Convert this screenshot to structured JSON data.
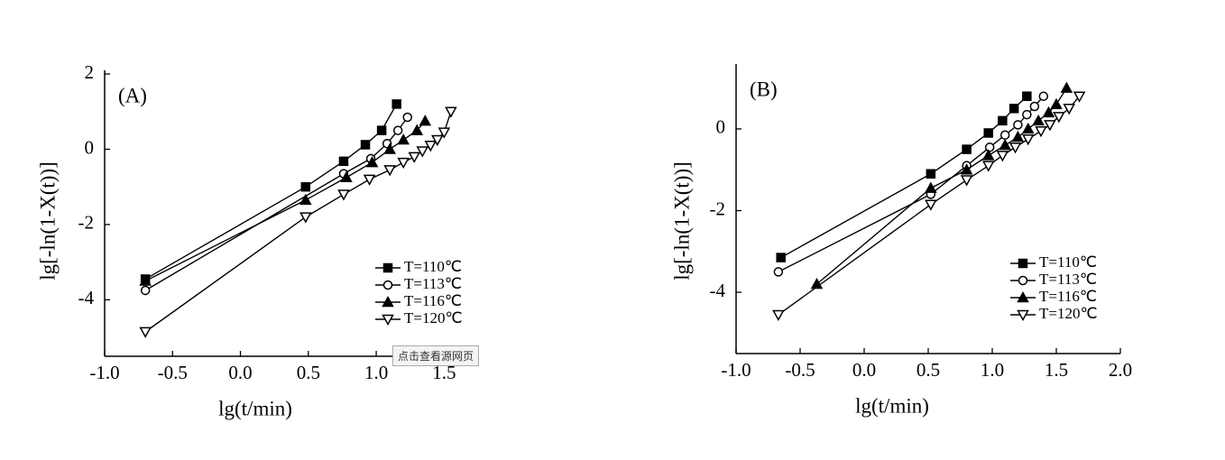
{
  "chart_data": [
    {
      "type": "line",
      "label": "(A)",
      "x_label": "lg(t/min)",
      "y_label": "lg[-ln(1-X(t))]",
      "xlim": [
        -1.0,
        1.75
      ],
      "ylim": [
        -5.5,
        2
      ],
      "xticks": [
        {
          "value": -1.0,
          "label": "-1.0"
        },
        {
          "value": -0.5,
          "label": "-0.5"
        },
        {
          "value": 0.0,
          "label": "0.0"
        },
        {
          "value": 0.5,
          "label": "0.5"
        },
        {
          "value": 1.0,
          "label": "1.0"
        },
        {
          "value": 1.5,
          "label": "1.5"
        }
      ],
      "yticks": [
        2,
        0,
        -2,
        -4
      ],
      "legend": "lower right",
      "series": [
        {
          "name": "T=110℃",
          "color": "#000000",
          "marker": "square",
          "filled": true,
          "x": [
            -0.7,
            0.48,
            0.76,
            0.92,
            1.04,
            1.15
          ],
          "values": [
            -3.45,
            -1.0,
            -0.32,
            0.12,
            0.5,
            1.2
          ]
        },
        {
          "name": "T=113℃",
          "color": "#000000",
          "marker": "circle",
          "filled": false,
          "x": [
            -0.7,
            0.76,
            0.96,
            1.08,
            1.16,
            1.23
          ],
          "values": [
            -3.75,
            -0.65,
            -0.25,
            0.15,
            0.5,
            0.85
          ]
        },
        {
          "name": "T=116℃",
          "color": "#000000",
          "marker": "triangle",
          "filled": true,
          "x": [
            -0.7,
            0.48,
            0.78,
            0.97,
            1.1,
            1.2,
            1.3,
            1.36
          ],
          "values": [
            -3.5,
            -1.35,
            -0.75,
            -0.35,
            0.0,
            0.25,
            0.5,
            0.75
          ]
        },
        {
          "name": "T=120℃",
          "color": "#000000",
          "marker": "triangle-down",
          "filled": false,
          "x": [
            -0.7,
            0.48,
            0.76,
            0.95,
            1.1,
            1.2,
            1.28,
            1.34,
            1.4,
            1.45,
            1.5,
            1.55
          ],
          "values": [
            -4.85,
            -1.8,
            -1.2,
            -0.8,
            -0.55,
            -0.35,
            -0.2,
            -0.05,
            0.1,
            0.25,
            0.45,
            1.0
          ]
        }
      ]
    },
    {
      "type": "line",
      "label": "(B)",
      "x_label": "lg(t/min)",
      "y_label": "lg[-ln(1-X(t))]",
      "xlim": [
        -1.0,
        2.0
      ],
      "ylim": [
        -5.5,
        1.5
      ],
      "xticks": [
        {
          "value": -1.0,
          "label": "-1.0"
        },
        {
          "value": -0.5,
          "label": "-0.5"
        },
        {
          "value": 0.0,
          "label": "0.0"
        },
        {
          "value": 0.5,
          "label": "0.5"
        },
        {
          "value": 1.0,
          "label": "1.0"
        },
        {
          "value": 1.5,
          "label": "1.5"
        },
        {
          "value": 2.0,
          "label": "2.0"
        }
      ],
      "yticks": [
        0,
        -2,
        -4
      ],
      "legend": "lower right",
      "series": [
        {
          "name": "T=110℃",
          "color": "#000000",
          "marker": "square",
          "filled": true,
          "x": [
            -0.65,
            0.52,
            0.8,
            0.97,
            1.08,
            1.17,
            1.27
          ],
          "values": [
            -3.15,
            -1.1,
            -0.5,
            -0.1,
            0.2,
            0.5,
            0.8
          ]
        },
        {
          "name": "T=113℃",
          "color": "#000000",
          "marker": "circle",
          "filled": false,
          "x": [
            -0.67,
            0.52,
            0.8,
            0.98,
            1.1,
            1.2,
            1.27,
            1.33,
            1.4
          ],
          "values": [
            -3.5,
            -1.6,
            -0.9,
            -0.45,
            -0.15,
            0.1,
            0.35,
            0.55,
            0.8
          ]
        },
        {
          "name": "T=116℃",
          "color": "#000000",
          "marker": "triangle",
          "filled": true,
          "x": [
            -0.37,
            0.52,
            0.8,
            0.97,
            1.1,
            1.2,
            1.28,
            1.36,
            1.44,
            1.5,
            1.58
          ],
          "values": [
            -3.8,
            -1.45,
            -1.0,
            -0.65,
            -0.4,
            -0.2,
            0.0,
            0.2,
            0.4,
            0.6,
            1.0
          ]
        },
        {
          "name": "T=120℃",
          "color": "#000000",
          "marker": "triangle-down",
          "filled": false,
          "x": [
            -0.67,
            0.52,
            0.8,
            0.97,
            1.08,
            1.18,
            1.28,
            1.38,
            1.45,
            1.52,
            1.6,
            1.68
          ],
          "values": [
            -4.55,
            -1.85,
            -1.25,
            -0.9,
            -0.65,
            -0.45,
            -0.25,
            -0.05,
            0.1,
            0.3,
            0.5,
            0.8
          ]
        }
      ]
    }
  ],
  "overlay": {
    "button": "点击查看源网页"
  }
}
